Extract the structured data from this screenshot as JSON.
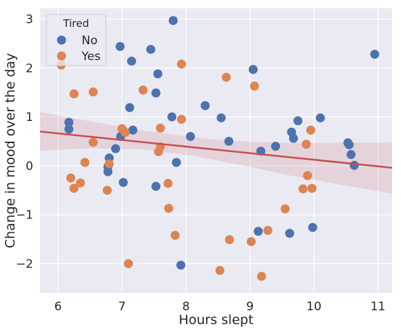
{
  "chart_data": {
    "type": "scatter",
    "xlabel": "Hours slept",
    "ylabel": "Change in mood over the day",
    "xlim": [
      5.72,
      11.22
    ],
    "ylim": [
      -2.6,
      3.22
    ],
    "xticks": [
      6,
      7,
      8,
      9,
      10,
      11
    ],
    "yticks": [
      -2,
      -1,
      0,
      1,
      2,
      3
    ],
    "ytick_labels": [
      "−2",
      "−1",
      "0",
      "1",
      "2",
      "3"
    ],
    "grid": true,
    "background": "#eaeaf2",
    "legend": {
      "title": "Tired",
      "placement": "top-left",
      "entries": [
        "No",
        "Yes"
      ]
    },
    "series": [
      {
        "name": "No",
        "color": "#4c72b0",
        "points": [
          [
            7.8,
            2.97
          ],
          [
            6.97,
            2.44
          ],
          [
            7.45,
            2.38
          ],
          [
            10.95,
            2.28
          ],
          [
            7.15,
            2.14
          ],
          [
            9.05,
            1.97
          ],
          [
            7.56,
            1.88
          ],
          [
            7.53,
            1.49
          ],
          [
            8.3,
            1.23
          ],
          [
            7.12,
            1.19
          ],
          [
            7.78,
            1.0
          ],
          [
            8.55,
            0.98
          ],
          [
            10.1,
            0.98
          ],
          [
            9.75,
            0.92
          ],
          [
            6.17,
            0.89
          ],
          [
            6.17,
            0.75
          ],
          [
            7.17,
            0.73
          ],
          [
            9.65,
            0.69
          ],
          [
            8.07,
            0.6
          ],
          [
            6.98,
            0.6
          ],
          [
            9.68,
            0.56
          ],
          [
            8.67,
            0.5
          ],
          [
            10.53,
            0.47
          ],
          [
            10.55,
            0.43
          ],
          [
            9.4,
            0.4
          ],
          [
            6.9,
            0.35
          ],
          [
            9.17,
            0.3
          ],
          [
            10.58,
            0.23
          ],
          [
            6.8,
            0.16
          ],
          [
            7.85,
            0.07
          ],
          [
            10.63,
            0.01
          ],
          [
            6.78,
            -0.02
          ],
          [
            6.78,
            -0.12
          ],
          [
            7.02,
            -0.34
          ],
          [
            7.53,
            -0.42
          ],
          [
            9.98,
            -1.26
          ],
          [
            9.13,
            -1.34
          ],
          [
            9.62,
            -1.38
          ],
          [
            7.92,
            -2.03
          ]
        ]
      },
      {
        "name": "Yes",
        "color": "#dd8452",
        "points": [
          [
            6.05,
            2.06
          ],
          [
            7.93,
            2.08
          ],
          [
            8.63,
            1.81
          ],
          [
            9.07,
            1.63
          ],
          [
            7.33,
            1.55
          ],
          [
            6.55,
            1.51
          ],
          [
            6.25,
            1.47
          ],
          [
            7.93,
            0.95
          ],
          [
            7.0,
            0.76
          ],
          [
            7.6,
            0.77
          ],
          [
            9.95,
            0.73
          ],
          [
            7.05,
            0.68
          ],
          [
            6.55,
            0.48
          ],
          [
            9.88,
            0.44
          ],
          [
            7.6,
            0.39
          ],
          [
            7.57,
            0.29
          ],
          [
            6.42,
            0.07
          ],
          [
            6.8,
            0.04
          ],
          [
            9.9,
            -0.2
          ],
          [
            6.2,
            -0.25
          ],
          [
            6.35,
            -0.35
          ],
          [
            7.72,
            -0.36
          ],
          [
            6.25,
            -0.46
          ],
          [
            9.83,
            -0.47
          ],
          [
            9.97,
            -0.46
          ],
          [
            6.77,
            -0.5
          ],
          [
            7.73,
            -0.87
          ],
          [
            9.55,
            -0.88
          ],
          [
            9.28,
            -1.32
          ],
          [
            7.83,
            -1.42
          ],
          [
            8.68,
            -1.51
          ],
          [
            9.02,
            -1.55
          ],
          [
            7.1,
            -2.0
          ],
          [
            8.53,
            -2.14
          ],
          [
            9.18,
            -2.26
          ]
        ]
      }
    ],
    "regression": {
      "color": "#c44e52",
      "line": [
        [
          5.72,
          0.7
        ],
        [
          11.22,
          -0.04
        ]
      ],
      "ci_upper": [
        [
          5.72,
          1.1
        ],
        [
          6.5,
          0.91
        ],
        [
          7.3,
          0.73
        ],
        [
          8.1,
          0.58
        ],
        [
          8.8,
          0.5
        ],
        [
          9.6,
          0.47
        ],
        [
          10.4,
          0.47
        ],
        [
          11.22,
          0.48
        ]
      ],
      "ci_lower": [
        [
          5.72,
          0.31
        ],
        [
          6.5,
          0.36
        ],
        [
          7.3,
          0.34
        ],
        [
          8.1,
          0.21
        ],
        [
          8.8,
          0.03
        ],
        [
          9.6,
          -0.19
        ],
        [
          10.4,
          -0.38
        ],
        [
          11.22,
          -0.57
        ]
      ]
    }
  }
}
